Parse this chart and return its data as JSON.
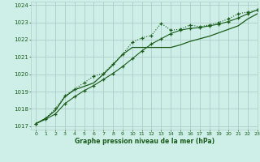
{
  "title": "Graphe pression niveau de la mer (hPa)",
  "background_color": "#ceeee8",
  "grid_color": "#b0ccc8",
  "line_color": "#1a5c1a",
  "xlim": [
    -0.5,
    23
  ],
  "ylim": [
    1016.8,
    1024.2
  ],
  "xticks": [
    0,
    1,
    2,
    3,
    4,
    5,
    6,
    7,
    8,
    9,
    10,
    11,
    12,
    13,
    14,
    15,
    16,
    17,
    18,
    19,
    20,
    21,
    22,
    23
  ],
  "yticks": [
    1017,
    1018,
    1019,
    1020,
    1021,
    1022,
    1023,
    1024
  ],
  "series1_x": [
    0,
    1,
    2,
    3,
    4,
    5,
    6,
    7,
    8,
    9,
    10,
    11,
    12,
    13,
    14,
    15,
    16,
    17,
    18,
    19,
    20,
    21,
    22,
    23
  ],
  "series1_y": [
    1017.15,
    1017.45,
    1018.0,
    1018.75,
    1019.15,
    1019.5,
    1019.9,
    1020.05,
    1020.6,
    1021.15,
    1021.85,
    1022.1,
    1022.25,
    1022.95,
    1022.55,
    1022.6,
    1022.85,
    1022.75,
    1022.85,
    1023.0,
    1023.2,
    1023.5,
    1023.6,
    1023.72
  ],
  "series2_x": [
    0,
    1,
    2,
    3,
    4,
    5,
    6,
    7,
    8,
    9,
    10,
    11,
    12,
    13,
    14,
    15,
    16,
    17,
    18,
    19,
    20,
    21,
    22,
    23
  ],
  "series2_y": [
    1017.15,
    1017.45,
    1017.9,
    1018.7,
    1019.1,
    1019.3,
    1019.5,
    1020.0,
    1020.55,
    1021.15,
    1021.55,
    1021.55,
    1021.55,
    1021.55,
    1021.55,
    1021.7,
    1021.9,
    1022.05,
    1022.2,
    1022.4,
    1022.6,
    1022.8,
    1023.2,
    1023.5
  ],
  "series3_x": [
    0,
    1,
    2,
    3,
    4,
    5,
    6,
    7,
    8,
    9,
    10,
    11,
    12,
    13,
    14,
    15,
    16,
    17,
    18,
    19,
    20,
    21,
    22,
    23
  ],
  "series3_y": [
    1017.15,
    1017.4,
    1017.7,
    1018.3,
    1018.7,
    1019.05,
    1019.35,
    1019.7,
    1020.05,
    1020.45,
    1020.9,
    1021.35,
    1021.75,
    1022.05,
    1022.35,
    1022.55,
    1022.65,
    1022.7,
    1022.8,
    1022.9,
    1023.05,
    1023.25,
    1023.5,
    1023.72
  ]
}
